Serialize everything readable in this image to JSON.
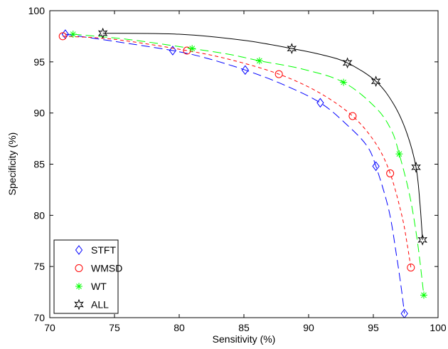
{
  "chart_data": {
    "type": "line",
    "xlabel": "Sensitivity (%)",
    "ylabel": "Specificity (%)",
    "xlim": [
      70,
      100
    ],
    "ylim": [
      70,
      100
    ],
    "xticks": [
      "70",
      "75",
      "80",
      "85",
      "90",
      "95",
      "100"
    ],
    "yticks": [
      "70",
      "75",
      "80",
      "85",
      "90",
      "95",
      "100"
    ],
    "grid": false,
    "legend_position": "bottom-left",
    "series": [
      {
        "name": "STFT",
        "color": "#0000ff",
        "dash": "long-dash",
        "marker": "diamond",
        "points": [
          [
            71.2,
            97.7
          ],
          [
            79.5,
            96.1
          ],
          [
            85.1,
            94.2
          ],
          [
            90.9,
            91.0
          ],
          [
            95.2,
            84.8
          ],
          [
            97.4,
            70.4
          ]
        ],
        "curve": [
          [
            71.2,
            97.7
          ],
          [
            75,
            97.0
          ],
          [
            79.5,
            96.1
          ],
          [
            82,
            95.4
          ],
          [
            85.1,
            94.2
          ],
          [
            88,
            92.8
          ],
          [
            90.9,
            91.0
          ],
          [
            93,
            88.8
          ],
          [
            94.5,
            86.8
          ],
          [
            95.2,
            84.8
          ],
          [
            96.2,
            80.5
          ],
          [
            96.8,
            76.0
          ],
          [
            97.2,
            72.5
          ],
          [
            97.4,
            70.4
          ]
        ]
      },
      {
        "name": "WMSD",
        "color": "#ff0000",
        "dash": "short-dash",
        "marker": "circle",
        "points": [
          [
            71.0,
            97.5
          ],
          [
            80.6,
            96.1
          ],
          [
            87.7,
            93.8
          ],
          [
            93.4,
            89.7
          ],
          [
            96.3,
            84.1
          ],
          [
            97.9,
            74.9
          ]
        ],
        "curve": [
          [
            71.0,
            97.5
          ],
          [
            75,
            97.2
          ],
          [
            80.6,
            96.1
          ],
          [
            84,
            95.2
          ],
          [
            87.7,
            93.8
          ],
          [
            90.8,
            92.0
          ],
          [
            93.4,
            89.7
          ],
          [
            95.2,
            87.0
          ],
          [
            96.3,
            84.1
          ],
          [
            97.2,
            80.0
          ],
          [
            97.6,
            77.3
          ],
          [
            97.9,
            74.9
          ]
        ]
      },
      {
        "name": "WT",
        "color": "#00ff00",
        "dash": "long-dash",
        "marker": "star",
        "points": [
          [
            71.8,
            97.7
          ],
          [
            81.0,
            96.3
          ],
          [
            86.2,
            95.1
          ],
          [
            92.7,
            93.0
          ],
          [
            97.0,
            86.0
          ],
          [
            98.9,
            72.2
          ]
        ],
        "curve": [
          [
            71.8,
            97.7
          ],
          [
            76,
            97.2
          ],
          [
            81.0,
            96.3
          ],
          [
            84,
            95.7
          ],
          [
            86.2,
            95.1
          ],
          [
            89.5,
            94.3
          ],
          [
            92.7,
            93.0
          ],
          [
            95.2,
            90.5
          ],
          [
            96.4,
            88.3
          ],
          [
            97.0,
            86.0
          ],
          [
            97.8,
            82.0
          ],
          [
            98.4,
            77.5
          ],
          [
            98.9,
            72.2
          ]
        ]
      },
      {
        "name": "ALL",
        "color": "#000000",
        "dash": "solid",
        "marker": "hexagram",
        "points": [
          [
            74.1,
            97.8
          ],
          [
            88.7,
            96.3
          ],
          [
            93.0,
            94.9
          ],
          [
            95.2,
            93.1
          ],
          [
            98.3,
            84.7
          ],
          [
            98.8,
            77.6
          ]
        ],
        "curve": [
          [
            74.1,
            97.8
          ],
          [
            80,
            97.7
          ],
          [
            85,
            97.1
          ],
          [
            88.7,
            96.3
          ],
          [
            91,
            95.7
          ],
          [
            93.0,
            94.9
          ],
          [
            95.2,
            93.1
          ],
          [
            96.6,
            90.8
          ],
          [
            97.6,
            88.0
          ],
          [
            98.3,
            84.7
          ],
          [
            98.6,
            81.2
          ],
          [
            98.8,
            77.6
          ]
        ]
      }
    ]
  }
}
